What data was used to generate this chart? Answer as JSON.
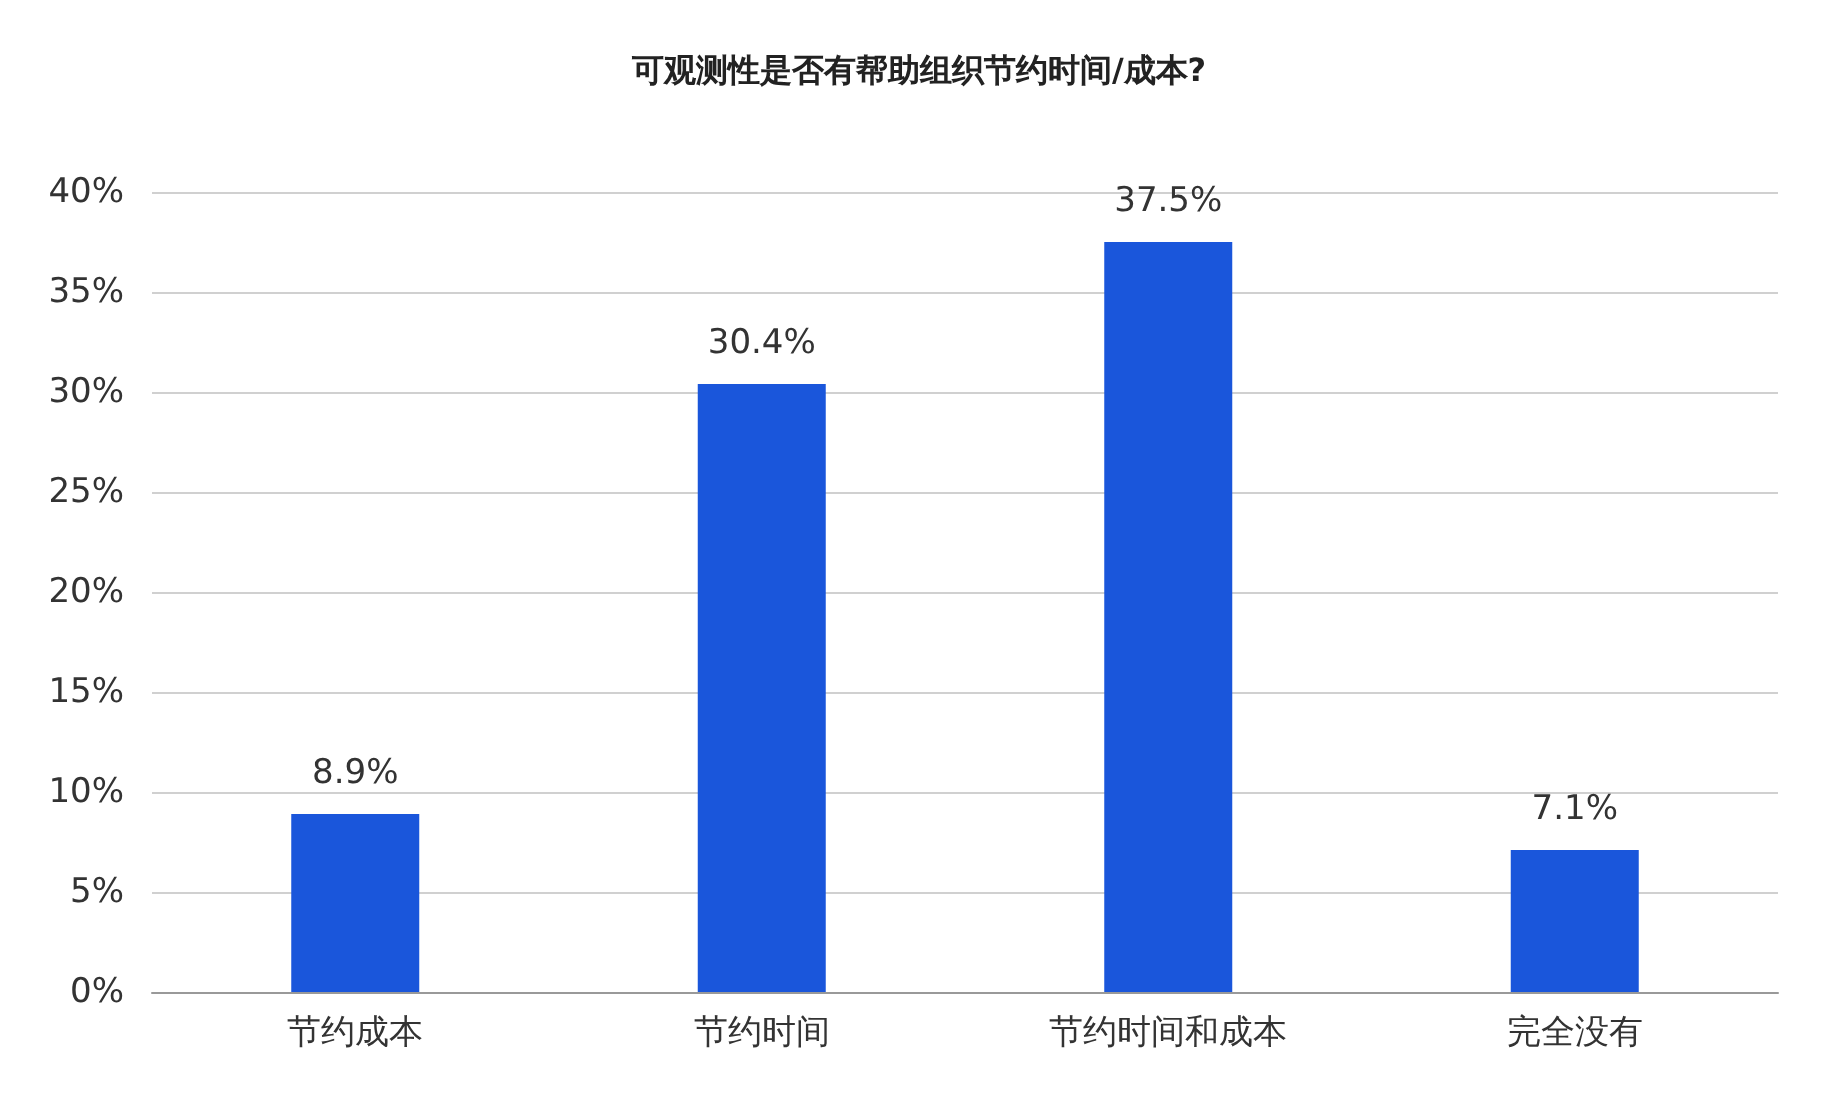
{
  "chart_data": {
    "type": "bar",
    "title": "可观测性是否有帮助组织节约时间/成本?",
    "categories": [
      "节约成本",
      "节约时间",
      "节约时间和成本",
      "完全没有"
    ],
    "values": [
      8.9,
      30.4,
      37.5,
      7.1
    ],
    "value_labels": [
      "8.9%",
      "30.4%",
      "37.5%",
      "7.1%"
    ],
    "color": "#1a56db",
    "ylim": [
      0,
      40
    ],
    "yticks": [
      {
        "value": 0,
        "label": "0%"
      },
      {
        "value": 5,
        "label": "5%"
      },
      {
        "value": 10,
        "label": "10%"
      },
      {
        "value": 15,
        "label": "15%"
      },
      {
        "value": 20,
        "label": "20%"
      },
      {
        "value": 25,
        "label": "25%"
      },
      {
        "value": 30,
        "label": "30%"
      },
      {
        "value": 35,
        "label": "35%"
      },
      {
        "value": 40,
        "label": "40%"
      }
    ],
    "grid": "y"
  }
}
